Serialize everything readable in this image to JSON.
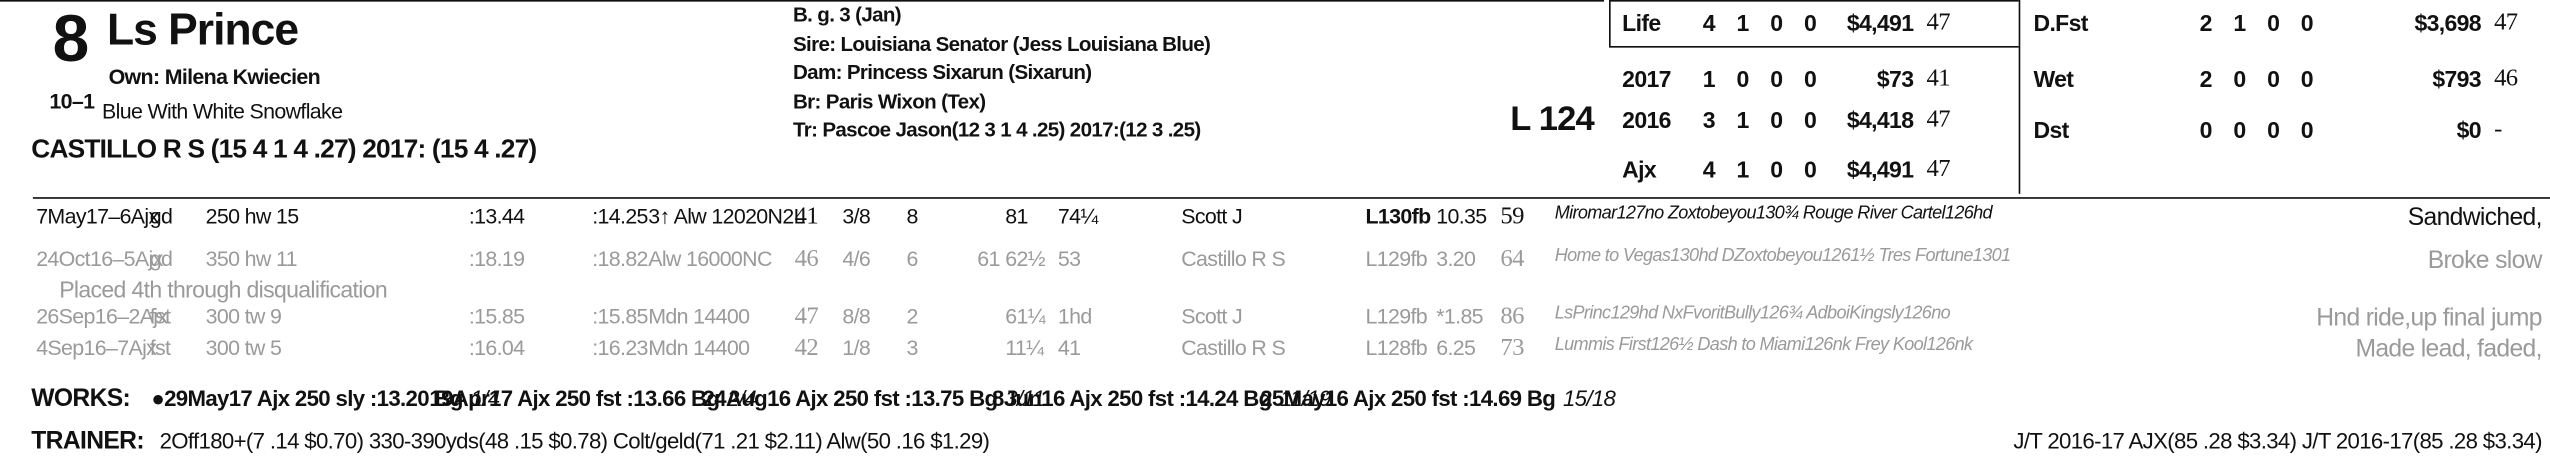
{
  "header": {
    "program_number": "8",
    "horse_name": "Ls Prince",
    "odds": "10–1",
    "owner": "Own: Milena Kwiecien",
    "silks": "Blue With White Snowflake",
    "jockey": "CASTILLO R S (15 4 1 4 .27) 2017: (15 4 .27)"
  },
  "breeding": {
    "sex_age": "B. g. 3 (Jan)",
    "sire": "Sire: Louisiana Senator (Jess Louisiana Blue)",
    "dam": "Dam: Princess Sixarun (Sixarun)",
    "breeder": "Br: Paris Wixon (Tex)",
    "trainer": "Tr: Pascoe Jason(12 3 1 4 .25) 2017:(12 3 .25)"
  },
  "weight": "L 124",
  "record_left": {
    "rows": [
      [
        "Life",
        "4",
        "1",
        "0",
        "0",
        "$4,491",
        "47"
      ],
      [
        "2017",
        "1",
        "0",
        "0",
        "0",
        "$73",
        "41"
      ],
      [
        "2016",
        "3",
        "1",
        "0",
        "0",
        "$4,418",
        "47"
      ],
      [
        "Ajx",
        "4",
        "1",
        "0",
        "0",
        "$4,491",
        "47"
      ]
    ]
  },
  "record_right": {
    "rows": [
      [
        "D.Fst",
        "2",
        "1",
        "0",
        "0",
        "$3,698",
        "47"
      ],
      [
        "Wet",
        "2",
        "0",
        "0",
        "0",
        "$793",
        "46"
      ],
      [
        "Dst",
        "0",
        "0",
        "0",
        "0",
        "$0",
        "-"
      ]
    ]
  },
  "past_performances": {
    "rows": [
      {
        "date": "7May17–6Ajx",
        "track_condition": "gd",
        "distance": "250 hw 15",
        "frac1": ":13.44",
        "frac2": ":14.25",
        "race": "3↑ Alw 12020N2L",
        "speed": "41",
        "post": "3/8",
        "start": "8",
        "call2": "81",
        "finish": "74¼",
        "jockey": "Scott J",
        "med_weight": "L130fb",
        "odds": "10.35",
        "figure": "59",
        "top_finishers": "Miromar127no Zoxtobeyou130¾ Rouge River Cartel126hd",
        "comment": "Sandwiched,"
      },
      {
        "date": "24Oct16–5Ajx",
        "track_condition": "gd",
        "distance": "350 hw 11",
        "frac1": ":18.19",
        "frac2": ":18.82",
        "race": "Alw 16000NC",
        "speed": "46",
        "post": "4/6",
        "start": "6",
        "call1": "61",
        "call2": "62½",
        "finish": "53",
        "jockey": "Castillo R S",
        "med_weight": "L129fb",
        "odds": "3.20",
        "figure": "64",
        "top_finishers": "Home to Vegas130hd DZoxtobeyou1261½ Tres Fortune1301",
        "comment": "Broke slow"
      },
      {
        "date": "26Sep16–2Ajx",
        "track_condition": "fst",
        "distance": "300 tw 9",
        "frac1": ":15.85",
        "frac2": ":15.85",
        "race": "Mdn 14400",
        "speed": "47",
        "post": "8/8",
        "start": "2",
        "call2": "61¼",
        "finish": "1hd",
        "jockey": "Scott J",
        "med_weight": "L129fb",
        "odds": "*1.85",
        "figure": "86",
        "top_finishers": "LsPrinc129hd NxFvoritBully126¾ AdboiKingsly126no",
        "comment": "Hnd ride,up final jump"
      },
      {
        "date": "4Sep16–7Ajx",
        "track_condition": "fst",
        "distance": "300 tw 5",
        "frac1": ":16.04",
        "frac2": ":16.23",
        "race": "Mdn 14400",
        "speed": "42",
        "post": "1/8",
        "start": "3",
        "call2": "11¼",
        "finish": "41",
        "jockey": "Castillo R S",
        "med_weight": "L128fb",
        "odds": "6.25",
        "figure": "73",
        "top_finishers": "Lummis First126½ Dash to Miami126nk Frey Kool126nk",
        "comment": "Made lead, faded,"
      }
    ],
    "note": "Placed 4th through disqualification"
  },
  "works": {
    "label": "WORKS:",
    "items": [
      {
        "text": "●29May17 Ajx 250 sly :13.20 Bg",
        "rank": "1/4"
      },
      {
        "text": "19Apr17 Ajx 250 fst :13.66 Bg",
        "rank": "2/4"
      },
      {
        "text": "24Aug16 Ajx 250 fst :13.75 Bg",
        "rank": "3/11"
      },
      {
        "text": "8Jun16 Ajx 250 fst :14.24 Bg",
        "rank": "11/19"
      },
      {
        "text": "25May16 Ajx 250 fst :14.69 Bg",
        "rank": "15/18"
      }
    ]
  },
  "trainer": {
    "label": "TRAINER:",
    "stats": "2Off180+(7 .14 $0.70) 330-390yds(48 .15 $0.78) Colt/geld(71 .21 $2.11) Alw(50 .16 $1.29)",
    "jt": "J/T 2016-17 AJX(85 .28 $3.34) J/T 2016-17(85 .28 $3.34)"
  }
}
